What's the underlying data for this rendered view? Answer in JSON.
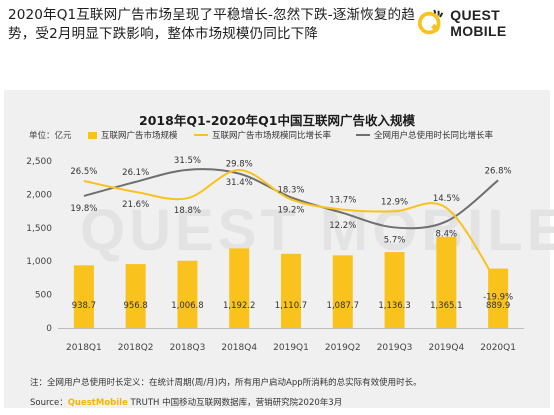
{
  "headline": "2020年Q1互联网广告市场呈现了平稳增长-忽然下跌-逐渐恢复的趋势，受2月明显下跌影响，整体市场规模仍同比下降",
  "brand": {
    "name": "QUEST MOBILE",
    "watermark": "QUEST MOBILE",
    "accent": "#f9c21c"
  },
  "unit_label": "单位：亿元",
  "footnote": "注：全网用户总使用时长定义：在统计周期(周/月)内，所有用户启动App所消耗的总实际有效使用时长。",
  "source": {
    "prefix": "Source：",
    "brand": "QuestMobile",
    "rest": " TRUTH 中国移动互联网数据库，营销研究院2020年3月"
  },
  "chart_data": {
    "type": "bar",
    "title": "2018年Q1-2020年Q1中国互联网广告收入规模",
    "categories": [
      "2018Q1",
      "2018Q2",
      "2018Q3",
      "2018Q4",
      "2019Q1",
      "2019Q2",
      "2019Q3",
      "2019Q4",
      "2020Q1"
    ],
    "ylim": [
      0,
      2500
    ],
    "yticks": [
      "0",
      "500",
      "1,000",
      "1,500",
      "2,000",
      "2,500"
    ],
    "series": [
      {
        "name": "互联网广告市场规模",
        "kind": "bar",
        "color": "#f9c21c",
        "values": [
          938.7,
          956.8,
          1006.8,
          1192.2,
          1110.7,
          1087.7,
          1136.3,
          1365.1,
          889.9
        ],
        "labels": [
          "938.7",
          "956.8",
          "1,006.8",
          "1,192.2",
          "1,110.7",
          "1,087.7",
          "1,136.3",
          "1,365.1",
          "889.9"
        ]
      },
      {
        "name": "互联网广告市场规模同比增长率",
        "kind": "line",
        "color": "#f9c21c",
        "unit": "%",
        "values": [
          26.5,
          21.6,
          18.8,
          31.4,
          18.3,
          13.7,
          12.9,
          14.5,
          -19.9
        ],
        "labels": [
          "26.5%",
          "21.6%",
          "18.8%",
          "31.4%",
          "18.3%",
          "13.7%",
          "12.9%",
          "14.5%",
          "-19.9%"
        ]
      },
      {
        "name": "全网用户总使用时长同比增长率",
        "kind": "line",
        "color": "#6f6f6f",
        "unit": "%",
        "values": [
          19.8,
          26.1,
          31.5,
          29.8,
          19.2,
          12.2,
          5.7,
          8.4,
          26.8
        ],
        "labels": [
          "19.8%",
          "26.1%",
          "31.5%",
          "29.8%",
          "19.2%",
          "12.2%",
          "5.7%",
          "8.4%",
          "26.8%"
        ]
      }
    ]
  }
}
